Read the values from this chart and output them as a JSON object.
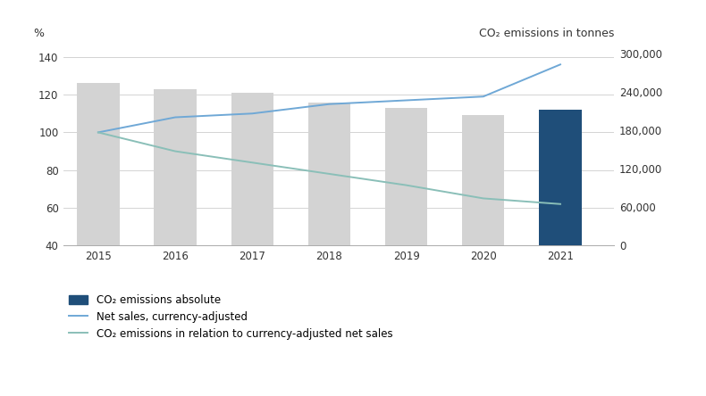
{
  "years": [
    2015,
    2016,
    2017,
    2018,
    2019,
    2020,
    2021
  ],
  "bar_values_grey": [
    126,
    123,
    121,
    116,
    113,
    109
  ],
  "bar_value_blue": 112,
  "blue_bar_year": 2021,
  "net_sales_line": [
    100,
    108,
    110,
    115,
    117,
    119,
    136
  ],
  "co2_relative_line": [
    100,
    90,
    84,
    78,
    72,
    65,
    62
  ],
  "bar_color_grey": "#d3d3d3",
  "bar_color_blue": "#1f4e79",
  "net_sales_color": "#6fa8d6",
  "co2_relative_color": "#8abfb8",
  "ylim_left": [
    40,
    145
  ],
  "ylim_right": [
    0,
    310000
  ],
  "yticks_left": [
    40,
    60,
    80,
    100,
    120,
    140
  ],
  "yticks_right": [
    0,
    60000,
    120000,
    180000,
    240000,
    300000
  ],
  "ytick_right_labels": [
    "0",
    "60,000",
    "120,000",
    "180,000",
    "240,000",
    "300,000"
  ],
  "ylabel_left": "%",
  "ylabel_right": "CO₂ emissions in tonnes",
  "legend_bar_label": "CO₂ emissions absolute",
  "legend_net_sales_label": "Net sales, currency-adjusted",
  "legend_co2_rel_label": "CO₂ emissions in relation to currency-adjusted net sales",
  "background_color": "#ffffff",
  "grid_color": "#cccccc",
  "bar_width": 0.55,
  "line_width": 1.4
}
